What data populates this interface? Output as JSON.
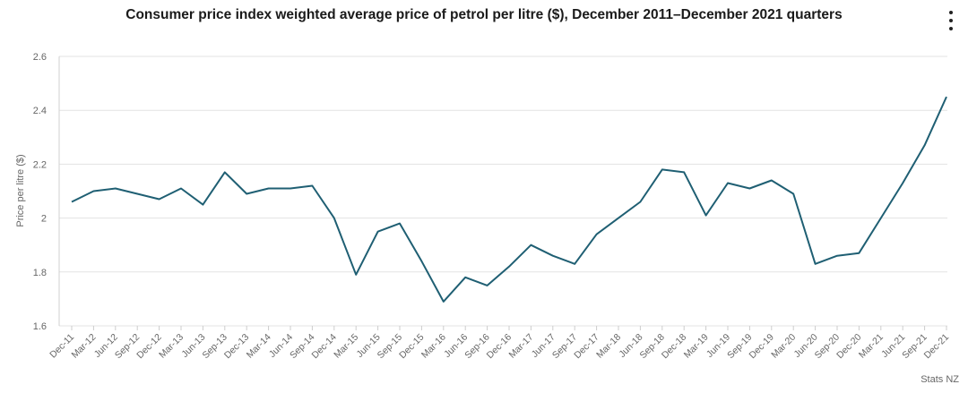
{
  "chart_data": {
    "type": "line",
    "title": "Consumer price index weighted average price of petrol per litre ($), December 2011–December 2021 quarters",
    "ylabel": "Price per litre ($)",
    "xlabel": "",
    "ylim": [
      1.6,
      2.6
    ],
    "yticks": [
      "1.6",
      "1.8",
      "2",
      "2.2",
      "2.4",
      "2.6"
    ],
    "grid": true,
    "categories": [
      "Dec-11",
      "Mar-12",
      "Jun-12",
      "Sep-12",
      "Dec-12",
      "Mar-13",
      "Jun-13",
      "Sep-13",
      "Dec-13",
      "Mar-14",
      "Jun-14",
      "Sep-14",
      "Dec-14",
      "Mar-15",
      "Jun-15",
      "Sep-15",
      "Dec-15",
      "Mar-16",
      "Jun-16",
      "Sep-16",
      "Dec-16",
      "Mar-17",
      "Jun-17",
      "Sep-17",
      "Dec-17",
      "Mar-18",
      "Jun-18",
      "Sep-18",
      "Dec-18",
      "Mar-19",
      "Jun-19",
      "Sep-19",
      "Dec-19",
      "Mar-20",
      "Jun-20",
      "Sep-20",
      "Dec-20",
      "Mar-21",
      "Jun-21",
      "Sep-21",
      "Dec-21"
    ],
    "series": [
      {
        "values": [
          2.06,
          2.1,
          2.11,
          2.09,
          2.07,
          2.11,
          2.05,
          2.17,
          2.09,
          2.11,
          2.11,
          2.12,
          2.0,
          1.79,
          1.95,
          1.98,
          1.84,
          1.69,
          1.78,
          1.75,
          1.82,
          1.9,
          1.86,
          1.83,
          1.94,
          2.0,
          2.06,
          2.18,
          2.17,
          2.01,
          2.13,
          2.11,
          2.14,
          2.09,
          1.83,
          1.86,
          1.87,
          2.0,
          2.13,
          2.27,
          2.45
        ],
        "color": "#1f5f73"
      }
    ]
  },
  "credit": "Stats NZ",
  "menu_icon": "kebab-menu-icon"
}
